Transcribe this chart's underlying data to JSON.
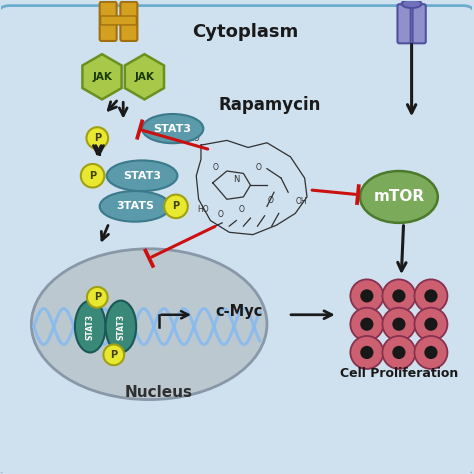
{
  "bg_color": "#cfe0ee",
  "cytoplasm_label": "Cytoplasm",
  "nucleus_label": "Nucleus",
  "rapamycin_label": "Rapamycin",
  "mtor_label": "mTOR",
  "cmyc_label": "c-Myc",
  "cell_prolif_label": "Cell Proliferation",
  "jak_label": "JAK",
  "stat3_label": "STAT3",
  "p_label": "P",
  "jak_color": "#a8c84a",
  "jak_border": "#6a9020",
  "stat3_color": "#5a9aaa",
  "stat3_border": "#3a7a8a",
  "stat3_nucleus_color": "#3a8878",
  "stat3_nucleus_border": "#1a5858",
  "p_color": "#e8e830",
  "p_border": "#a0a010",
  "mtor_color": "#7aaa5a",
  "mtor_border": "#4a7a2a",
  "receptor_left_color": "#d4a020",
  "receptor_left_border": "#a07010",
  "receptor_right_color": "#9090cc",
  "receptor_right_border": "#5050a0",
  "receptor_right_cap": "#7070bb",
  "cell_color": "#cc6070",
  "cell_border": "#883050",
  "cell_nucleus_color": "#181818",
  "dna_color": "#88bbee",
  "nucleus_bg": "#bcc8d0",
  "nucleus_border": "#8898a8",
  "arrow_color": "#1a1a1a",
  "inhibit_color": "#cc1010",
  "label_color": "#1a1a1a",
  "white": "#ffffff",
  "chem_color": "#303030"
}
